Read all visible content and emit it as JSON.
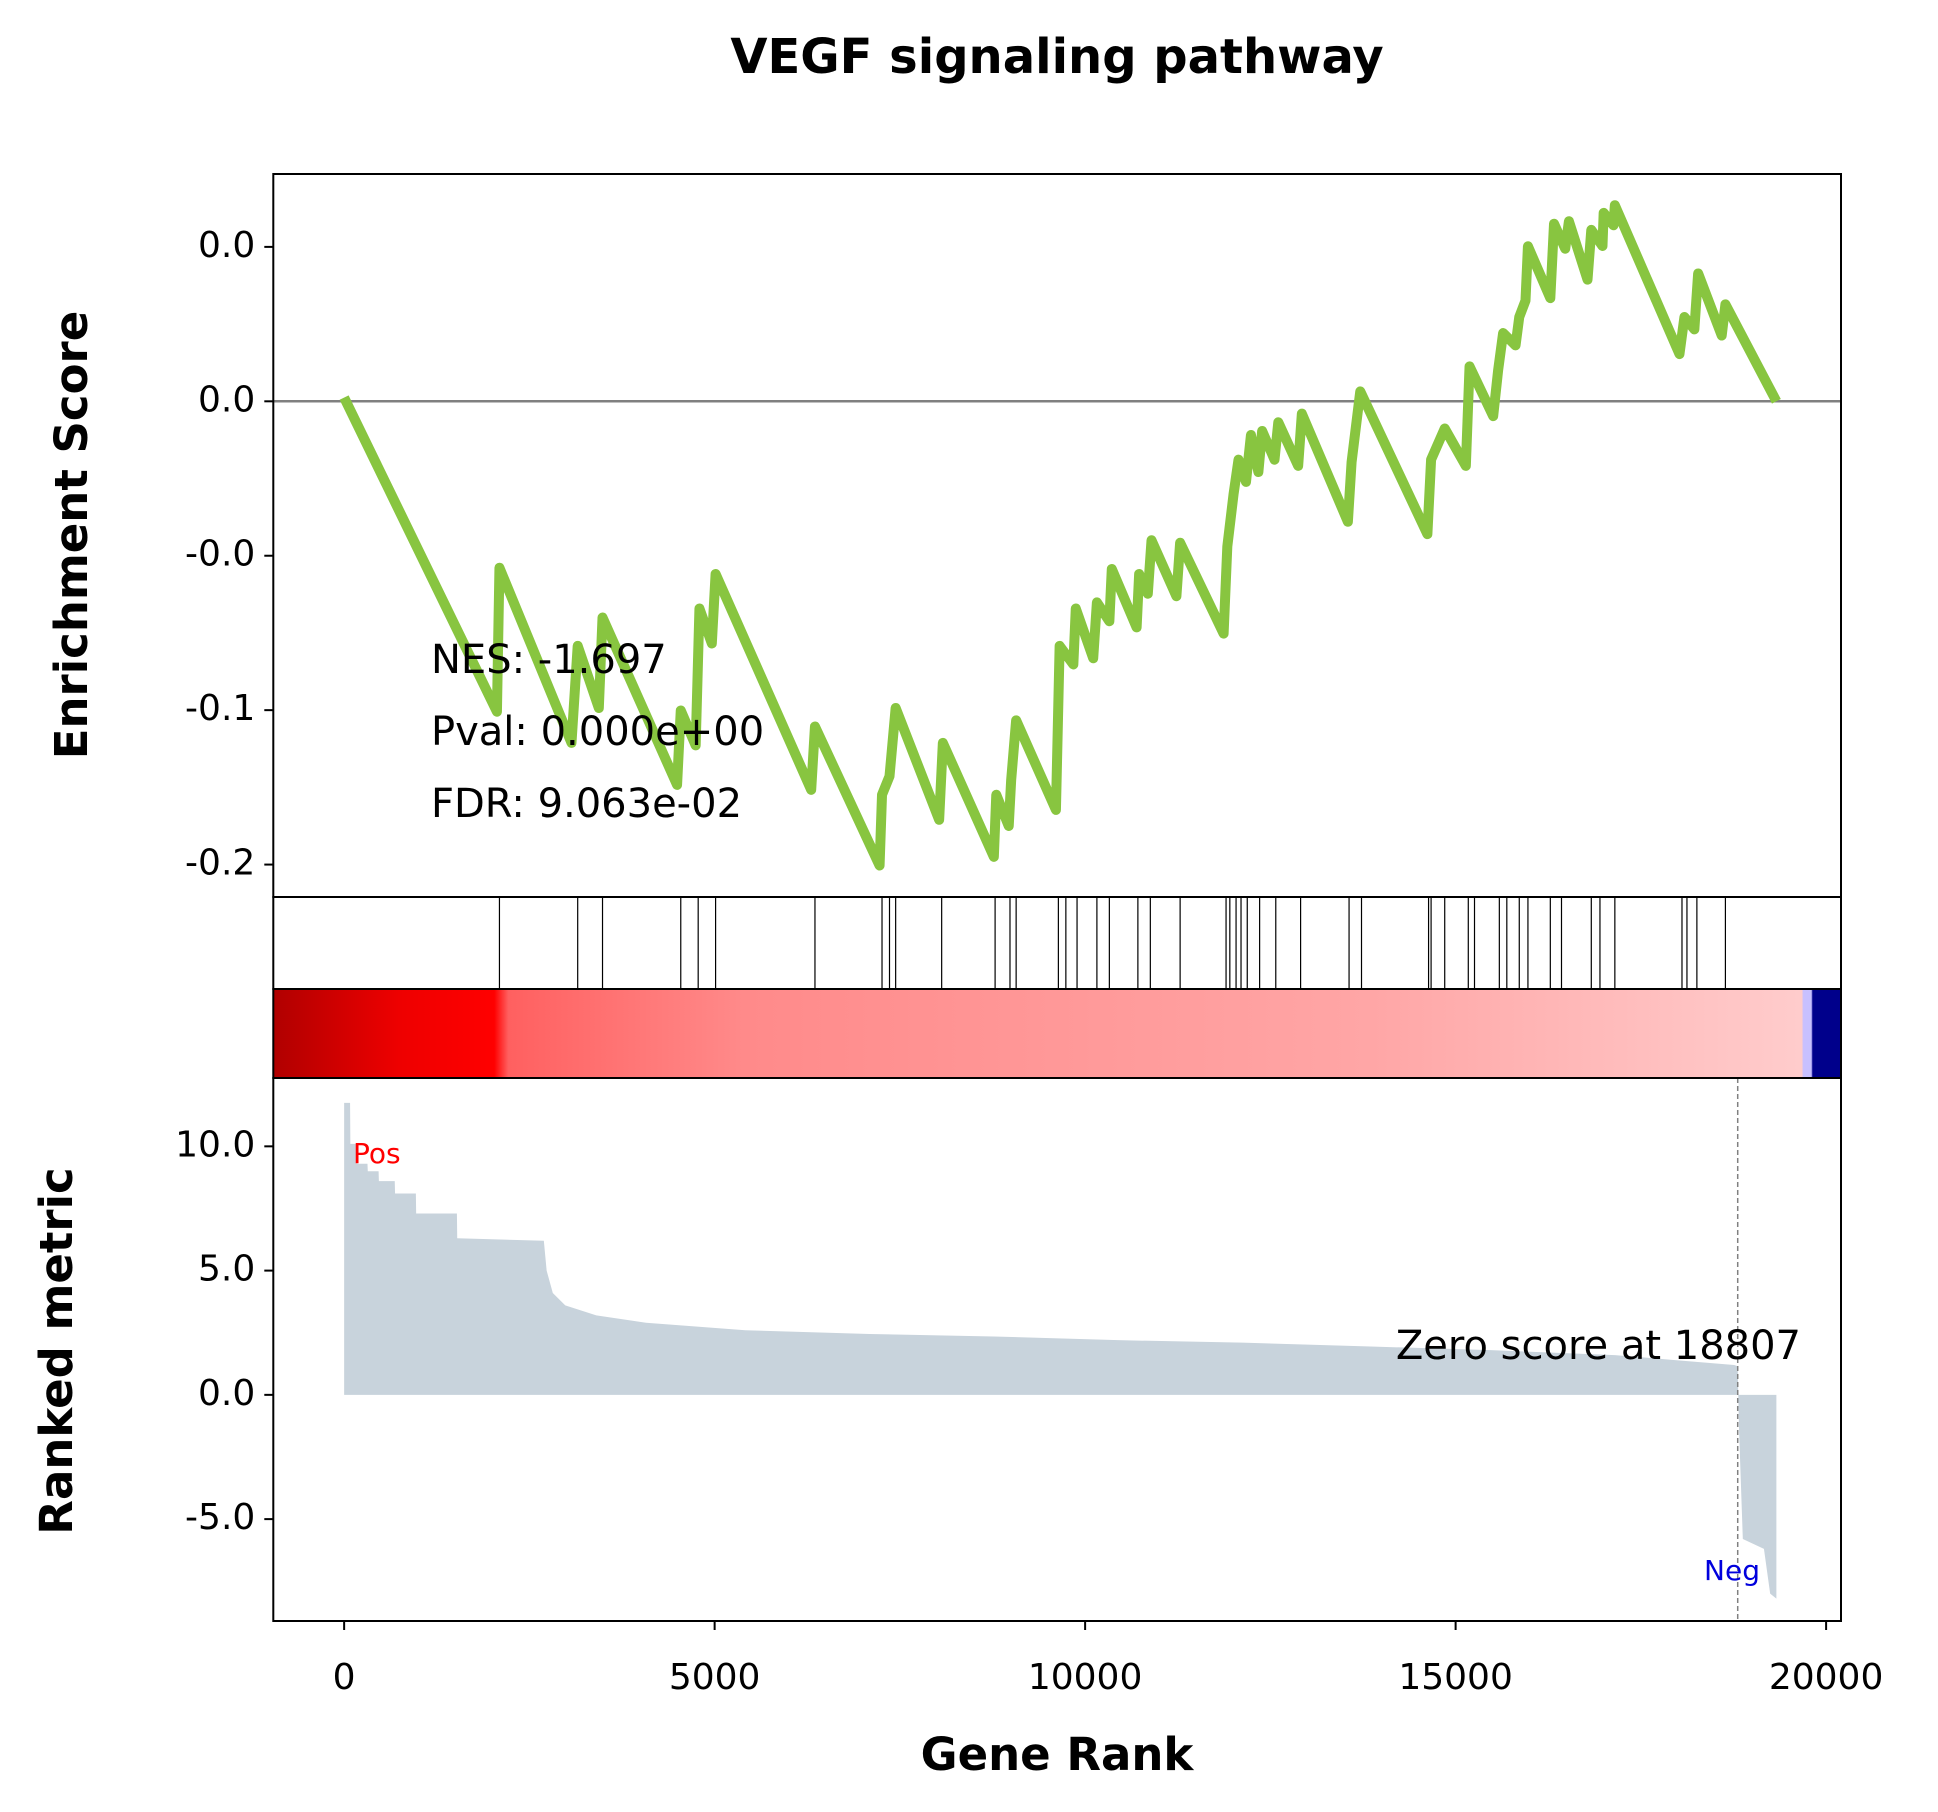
{
  "chart_data": [
    {
      "type": "line",
      "title": "VEGF signaling pathway",
      "ylabel": "Enrichment Score",
      "annotations": [
        "NES: -1.697",
        "Pval: 0.000e+00",
        "FDR: 9.063e-02"
      ],
      "xlim": [
        -956,
        20201
      ],
      "ylim": [
        -0.1605,
        0.0736
      ],
      "yticks": [
        {
          "value": 0.05,
          "label": "0.0"
        },
        {
          "value": 0,
          "label": "0.0"
        },
        {
          "value": -0.05,
          "label": "-0.0"
        },
        {
          "value": -0.1,
          "label": "-0.1"
        },
        {
          "value": -0.15,
          "label": "-0.2"
        }
      ],
      "color": "#88c540",
      "x": [
        0,
        2062,
        2096,
        3068,
        3152,
        3437,
        3487,
        4493,
        4543,
        4744,
        4795,
        4962,
        5013,
        6303,
        6354,
        7226,
        7259,
        7360,
        7443,
        8030,
        8080,
        8768,
        8801,
        8969,
        9002,
        9069,
        9606,
        9656,
        9841,
        9874,
        10109,
        10159,
        10327,
        10360,
        10695,
        10729,
        10846,
        10896,
        11232,
        11282,
        11869,
        11919,
        12003,
        12070,
        12171,
        12238,
        12338,
        12389,
        12556,
        12607,
        12875,
        12925,
        13546,
        13596,
        13713,
        14619,
        14669,
        14853,
        15138,
        15188,
        15507,
        15574,
        15641,
        15809,
        15859,
        15943,
        15976,
        16278,
        16328,
        16479,
        16529,
        16780,
        16831,
        16982,
        16998,
        17130,
        17149,
        18021,
        18088,
        18222,
        18273,
        18591,
        18641,
        19329
      ],
      "values": [
        0.0012,
        -0.1005,
        -0.0539,
        -0.1106,
        -0.0792,
        -0.0993,
        -0.07,
        -0.1242,
        -0.1001,
        -0.1114,
        -0.0671,
        -0.0784,
        -0.0559,
        -0.1258,
        -0.1053,
        -0.1503,
        -0.1274,
        -0.1214,
        -0.0993,
        -0.1355,
        -0.1106,
        -0.1475,
        -0.1274,
        -0.1375,
        -0.1226,
        -0.1033,
        -0.1323,
        -0.0792,
        -0.0852,
        -0.0671,
        -0.0832,
        -0.0651,
        -0.0712,
        -0.0543,
        -0.0732,
        -0.0559,
        -0.0623,
        -0.045,
        -0.0631,
        -0.0458,
        -0.0752,
        -0.047,
        -0.0301,
        -0.0189,
        -0.0261,
        -0.0109,
        -0.0229,
        -0.0096,
        -0.0189,
        -0.0068,
        -0.0209,
        -0.004,
        -0.039,
        -0.0197,
        0.0032,
        -0.043,
        -0.0189,
        -0.0088,
        -0.0209,
        0.0113,
        -0.0048,
        0.0101,
        0.0221,
        0.0181,
        0.0273,
        0.0326,
        0.0502,
        0.0334,
        0.0575,
        0.0494,
        0.0583,
        0.0394,
        0.0555,
        0.0503,
        0.061,
        0.057,
        0.0635,
        0.0153,
        0.0273,
        0.0233,
        0.0414,
        0.0213,
        0.0314,
        0.0
      ],
      "hits": [
        2096,
        3152,
        3487,
        4543,
        4778,
        5013,
        6354,
        7259,
        7360,
        7443,
        8064,
        8785,
        8986,
        9069,
        9639,
        9740,
        9891,
        10159,
        10327,
        10712,
        10880,
        11282,
        11902,
        11953,
        12037,
        12104,
        12188,
        12355,
        12573,
        12908,
        13562,
        13730,
        14635,
        14669,
        14853,
        15171,
        15255,
        15590,
        15691,
        15859,
        15976,
        16278,
        16429,
        16831,
        16948,
        17149,
        18055,
        18122,
        18256,
        18641
      ]
    },
    {
      "type": "area",
      "ylabel": "Ranked metric",
      "xlabel": "Gene Rank",
      "pos_label": "Pos",
      "neg_label": "Neg",
      "zero_score_label": "Zero score at 18807",
      "zero_score_rank": 18807,
      "xlim": [
        -956,
        20201
      ],
      "ylim": [
        -9.1,
        12.75
      ],
      "xticks": [
        0,
        5000,
        10000,
        15000,
        20000
      ],
      "yticks": [
        {
          "value": 10,
          "label": "10.0"
        },
        {
          "value": 5,
          "label": "5.0"
        },
        {
          "value": 0,
          "label": "0.0"
        },
        {
          "value": -5,
          "label": "-5.0"
        }
      ],
      "color": "#c8d3dc",
      "x": [
        0,
        80,
        84,
        165,
        168,
        315,
        319,
        465,
        469,
        683,
        687,
        968,
        972,
        1522,
        1526,
        2695,
        2733,
        2816,
        2984,
        3403,
        4074,
        5415,
        7091,
        8768,
        10444,
        12120,
        13797,
        15473,
        17149,
        18759,
        18806,
        18826,
        18876,
        19161,
        19245,
        19329
      ],
      "values": [
        11.75,
        11.75,
        10.1,
        10.1,
        9.3,
        9.3,
        9.0,
        9.0,
        8.6,
        8.6,
        8.1,
        8.1,
        7.3,
        7.3,
        6.3,
        6.2,
        5.0,
        4.1,
        3.6,
        3.2,
        2.9,
        2.6,
        2.45,
        2.35,
        2.2,
        2.1,
        1.95,
        1.8,
        1.6,
        1.2,
        1.15,
        -1.5,
        -5.8,
        -6.2,
        -8.0,
        -8.2
      ]
    }
  ]
}
